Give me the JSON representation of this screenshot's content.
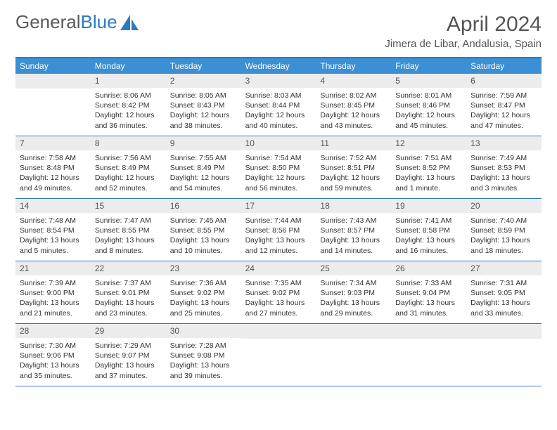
{
  "logo": {
    "text1": "General",
    "text2": "Blue"
  },
  "title": "April 2024",
  "location": "Jimera de Libar, Andalusia, Spain",
  "colors": {
    "header_bg": "#3b8fd4",
    "border": "#2d7bbf",
    "date_bg": "#ececec",
    "text": "#333333",
    "title_text": "#555555"
  },
  "day_names": [
    "Sunday",
    "Monday",
    "Tuesday",
    "Wednesday",
    "Thursday",
    "Friday",
    "Saturday"
  ],
  "weeks": [
    [
      {
        "date": "",
        "lines": []
      },
      {
        "date": "1",
        "lines": [
          "Sunrise: 8:06 AM",
          "Sunset: 8:42 PM",
          "Daylight: 12 hours",
          "and 36 minutes."
        ]
      },
      {
        "date": "2",
        "lines": [
          "Sunrise: 8:05 AM",
          "Sunset: 8:43 PM",
          "Daylight: 12 hours",
          "and 38 minutes."
        ]
      },
      {
        "date": "3",
        "lines": [
          "Sunrise: 8:03 AM",
          "Sunset: 8:44 PM",
          "Daylight: 12 hours",
          "and 40 minutes."
        ]
      },
      {
        "date": "4",
        "lines": [
          "Sunrise: 8:02 AM",
          "Sunset: 8:45 PM",
          "Daylight: 12 hours",
          "and 43 minutes."
        ]
      },
      {
        "date": "5",
        "lines": [
          "Sunrise: 8:01 AM",
          "Sunset: 8:46 PM",
          "Daylight: 12 hours",
          "and 45 minutes."
        ]
      },
      {
        "date": "6",
        "lines": [
          "Sunrise: 7:59 AM",
          "Sunset: 8:47 PM",
          "Daylight: 12 hours",
          "and 47 minutes."
        ]
      }
    ],
    [
      {
        "date": "7",
        "lines": [
          "Sunrise: 7:58 AM",
          "Sunset: 8:48 PM",
          "Daylight: 12 hours",
          "and 49 minutes."
        ]
      },
      {
        "date": "8",
        "lines": [
          "Sunrise: 7:56 AM",
          "Sunset: 8:49 PM",
          "Daylight: 12 hours",
          "and 52 minutes."
        ]
      },
      {
        "date": "9",
        "lines": [
          "Sunrise: 7:55 AM",
          "Sunset: 8:49 PM",
          "Daylight: 12 hours",
          "and 54 minutes."
        ]
      },
      {
        "date": "10",
        "lines": [
          "Sunrise: 7:54 AM",
          "Sunset: 8:50 PM",
          "Daylight: 12 hours",
          "and 56 minutes."
        ]
      },
      {
        "date": "11",
        "lines": [
          "Sunrise: 7:52 AM",
          "Sunset: 8:51 PM",
          "Daylight: 12 hours",
          "and 59 minutes."
        ]
      },
      {
        "date": "12",
        "lines": [
          "Sunrise: 7:51 AM",
          "Sunset: 8:52 PM",
          "Daylight: 13 hours",
          "and 1 minute."
        ]
      },
      {
        "date": "13",
        "lines": [
          "Sunrise: 7:49 AM",
          "Sunset: 8:53 PM",
          "Daylight: 13 hours",
          "and 3 minutes."
        ]
      }
    ],
    [
      {
        "date": "14",
        "lines": [
          "Sunrise: 7:48 AM",
          "Sunset: 8:54 PM",
          "Daylight: 13 hours",
          "and 5 minutes."
        ]
      },
      {
        "date": "15",
        "lines": [
          "Sunrise: 7:47 AM",
          "Sunset: 8:55 PM",
          "Daylight: 13 hours",
          "and 8 minutes."
        ]
      },
      {
        "date": "16",
        "lines": [
          "Sunrise: 7:45 AM",
          "Sunset: 8:55 PM",
          "Daylight: 13 hours",
          "and 10 minutes."
        ]
      },
      {
        "date": "17",
        "lines": [
          "Sunrise: 7:44 AM",
          "Sunset: 8:56 PM",
          "Daylight: 13 hours",
          "and 12 minutes."
        ]
      },
      {
        "date": "18",
        "lines": [
          "Sunrise: 7:43 AM",
          "Sunset: 8:57 PM",
          "Daylight: 13 hours",
          "and 14 minutes."
        ]
      },
      {
        "date": "19",
        "lines": [
          "Sunrise: 7:41 AM",
          "Sunset: 8:58 PM",
          "Daylight: 13 hours",
          "and 16 minutes."
        ]
      },
      {
        "date": "20",
        "lines": [
          "Sunrise: 7:40 AM",
          "Sunset: 8:59 PM",
          "Daylight: 13 hours",
          "and 18 minutes."
        ]
      }
    ],
    [
      {
        "date": "21",
        "lines": [
          "Sunrise: 7:39 AM",
          "Sunset: 9:00 PM",
          "Daylight: 13 hours",
          "and 21 minutes."
        ]
      },
      {
        "date": "22",
        "lines": [
          "Sunrise: 7:37 AM",
          "Sunset: 9:01 PM",
          "Daylight: 13 hours",
          "and 23 minutes."
        ]
      },
      {
        "date": "23",
        "lines": [
          "Sunrise: 7:36 AM",
          "Sunset: 9:02 PM",
          "Daylight: 13 hours",
          "and 25 minutes."
        ]
      },
      {
        "date": "24",
        "lines": [
          "Sunrise: 7:35 AM",
          "Sunset: 9:02 PM",
          "Daylight: 13 hours",
          "and 27 minutes."
        ]
      },
      {
        "date": "25",
        "lines": [
          "Sunrise: 7:34 AM",
          "Sunset: 9:03 PM",
          "Daylight: 13 hours",
          "and 29 minutes."
        ]
      },
      {
        "date": "26",
        "lines": [
          "Sunrise: 7:33 AM",
          "Sunset: 9:04 PM",
          "Daylight: 13 hours",
          "and 31 minutes."
        ]
      },
      {
        "date": "27",
        "lines": [
          "Sunrise: 7:31 AM",
          "Sunset: 9:05 PM",
          "Daylight: 13 hours",
          "and 33 minutes."
        ]
      }
    ],
    [
      {
        "date": "28",
        "lines": [
          "Sunrise: 7:30 AM",
          "Sunset: 9:06 PM",
          "Daylight: 13 hours",
          "and 35 minutes."
        ]
      },
      {
        "date": "29",
        "lines": [
          "Sunrise: 7:29 AM",
          "Sunset: 9:07 PM",
          "Daylight: 13 hours",
          "and 37 minutes."
        ]
      },
      {
        "date": "30",
        "lines": [
          "Sunrise: 7:28 AM",
          "Sunset: 9:08 PM",
          "Daylight: 13 hours",
          "and 39 minutes."
        ]
      },
      {
        "date": "",
        "lines": []
      },
      {
        "date": "",
        "lines": []
      },
      {
        "date": "",
        "lines": []
      },
      {
        "date": "",
        "lines": []
      }
    ]
  ]
}
